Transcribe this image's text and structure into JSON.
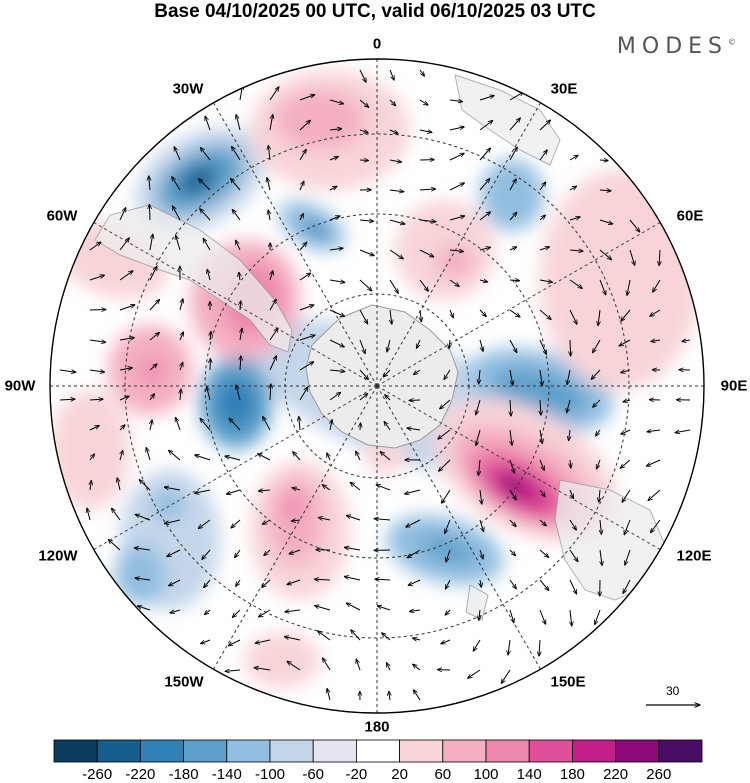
{
  "title": "Base 04/10/2025 00 UTC, valid 06/10/2025 03 UTC",
  "brand": "MODES",
  "brand_mark": "©",
  "longitude_labels": {
    "n0": "0",
    "n30e": "30E",
    "n60e": "60E",
    "n90e": "90E",
    "n120e": "120E",
    "n150e": "150E",
    "n180": "180",
    "n150w": "150W",
    "n120w": "120W",
    "n90w": "90W",
    "n60w": "60W",
    "n30w": "30W"
  },
  "reference_vector_label": "30",
  "colorbar": {
    "labels": [
      "-260",
      "-220",
      "-180",
      "-140",
      "-100",
      "-60",
      "-20",
      "20",
      "60",
      "100",
      "140",
      "180",
      "220",
      "260"
    ],
    "colors": [
      "#0c3c5e",
      "#155d8c",
      "#2f80b6",
      "#5da0cb",
      "#92bee0",
      "#c4d6ea",
      "#e6e6f2",
      "#ffffff",
      "#f8d4d8",
      "#f4afc1",
      "#ee87ad",
      "#e0509a",
      "#c21f87",
      "#8e0a78",
      "#4a0d66"
    ]
  },
  "colors": {
    "land": "#ececec",
    "coast": "#9a9a9a",
    "grid": "#333333"
  }
}
